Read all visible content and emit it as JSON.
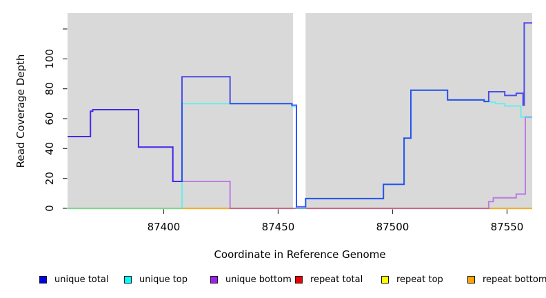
{
  "chart_data": {
    "type": "line",
    "title": "",
    "xlabel": "Coordinate in Reference Genome",
    "ylabel": "Read Coverage Depth",
    "panel_bg": "#d9d9d9",
    "xlim": [
      87358,
      87561
    ],
    "ylim": [
      0,
      131
    ],
    "x_end": 87561,
    "grid": false,
    "x_ticks": [
      {
        "v": 87400,
        "label": "87400"
      },
      {
        "v": 87450,
        "label": "87450"
      },
      {
        "v": 87500,
        "label": "87500"
      },
      {
        "v": 87550,
        "label": "87550"
      }
    ],
    "y_ticks": [
      {
        "v": 0,
        "label": "0"
      },
      {
        "v": 20,
        "label": "20"
      },
      {
        "v": 40,
        "label": "40"
      },
      {
        "v": 60,
        "label": "60"
      },
      {
        "v": 80,
        "label": "80"
      },
      {
        "v": 100,
        "label": "100"
      },
      {
        "v": 120,
        "label": ""
      }
    ],
    "panels": [
      {
        "x_start": 87358,
        "x_end": 87456.5
      },
      {
        "x_start": 87462,
        "x_end": 87561
      }
    ],
    "series": [
      {
        "name": "repeat total",
        "color": "#EE0000",
        "opacity": 0.45,
        "steps": [
          [
            87358,
            0
          ]
        ]
      },
      {
        "name": "repeat top",
        "color": "#FFFF00",
        "opacity": 0.5,
        "steps": [
          [
            87358,
            0
          ]
        ]
      },
      {
        "name": "repeat bottom",
        "color": "#FFA500",
        "opacity": 0.5,
        "steps": [
          [
            87358,
            0
          ]
        ]
      },
      {
        "name": "unique bottom",
        "color": "#A020F0",
        "opacity": 0.5,
        "steps": [
          [
            87358,
            48
          ],
          [
            87368,
            65
          ],
          [
            87369,
            66
          ],
          [
            87389,
            41
          ],
          [
            87404,
            18
          ],
          [
            87429,
            0
          ],
          [
            87542,
            4.5
          ],
          [
            87544,
            7
          ],
          [
            87554,
            9.5
          ],
          [
            87558,
            61
          ]
        ]
      },
      {
        "name": "unique top",
        "color": "#00FFFF",
        "opacity": 0.5,
        "steps": [
          [
            87358,
            0
          ],
          [
            87408,
            70
          ],
          [
            87456,
            68
          ],
          [
            87458,
            0
          ],
          [
            87462,
            6.5
          ],
          [
            87496,
            16
          ],
          [
            87505,
            47
          ],
          [
            87508,
            79
          ],
          [
            87524,
            72.5
          ],
          [
            87540,
            71.5
          ],
          [
            87543,
            71
          ],
          [
            87545,
            70
          ],
          [
            87549,
            68.5
          ],
          [
            87556,
            61
          ]
        ]
      },
      {
        "name": "unique total",
        "color": "#0000EE",
        "opacity": 0.65,
        "steps": [
          [
            87358,
            48
          ],
          [
            87368,
            65
          ],
          [
            87369,
            66
          ],
          [
            87389,
            41
          ],
          [
            87404,
            18
          ],
          [
            87408,
            88
          ],
          [
            87429,
            70
          ],
          [
            87456,
            69
          ],
          [
            87458,
            1
          ],
          [
            87462,
            6.5
          ],
          [
            87496,
            16
          ],
          [
            87505,
            47
          ],
          [
            87508,
            79
          ],
          [
            87524,
            72.5
          ],
          [
            87540,
            71.5
          ],
          [
            87542,
            78
          ],
          [
            87549,
            75.5
          ],
          [
            87554,
            77
          ],
          [
            87557,
            69
          ],
          [
            87557.5,
            124
          ]
        ]
      }
    ]
  },
  "legend": {
    "items": [
      {
        "label": "unique total",
        "color": "#0000EE"
      },
      {
        "label": "unique top",
        "color": "#00FFFF"
      },
      {
        "label": "unique bottom",
        "color": "#A020F0"
      },
      {
        "label": "repeat total",
        "color": "#EE0000"
      },
      {
        "label": "repeat top",
        "color": "#FFFF00"
      },
      {
        "label": "repeat bottom",
        "color": "#FFA500"
      }
    ]
  }
}
